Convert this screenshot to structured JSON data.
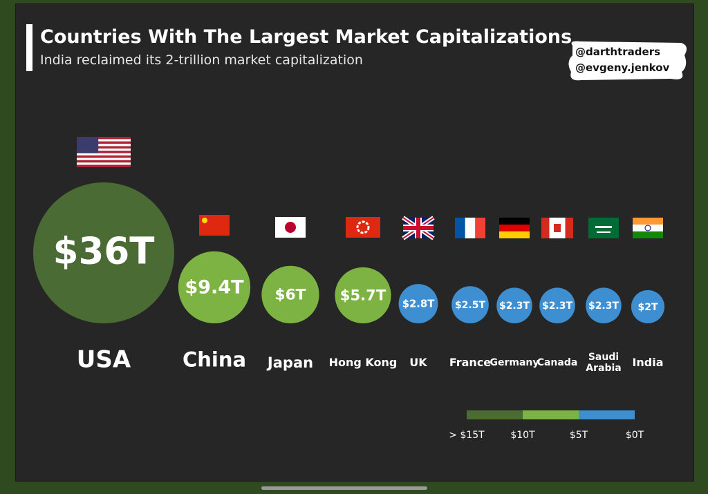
{
  "chart_data": {
    "type": "bubble",
    "title": "Countries With The Largest Market Capitalizations",
    "subtitle": "India reclaimed its 2-trillion market capitalization",
    "watermarks": [
      "@darthtraders",
      "@evgeny.jenkov"
    ],
    "categories": [
      "USA",
      "China",
      "Japan",
      "Hong Kong",
      "UK",
      "France",
      "Germany",
      "Canada",
      "Saudi Arabia",
      "India"
    ],
    "values": [
      36,
      9.4,
      6,
      5.7,
      2.8,
      2.5,
      2.3,
      2.3,
      2.3,
      2
    ],
    "value_labels": [
      "$36T",
      "$9.4T",
      "$6T",
      "$5.7T",
      "$2.8T",
      "$2.5T",
      "$2.3T",
      "$2.3T",
      "$2.3T",
      "$2T"
    ],
    "color_scale": {
      "colors": [
        "#4a6b34",
        "#7cb342",
        "#3d8fd1"
      ],
      "ticks": [
        {
          "value": 15,
          "label": "> $15T"
        },
        {
          "value": 10,
          "label": "$10T"
        },
        {
          "value": 5,
          "label": "$5T"
        },
        {
          "value": 0,
          "label": "$0T"
        }
      ]
    }
  }
}
